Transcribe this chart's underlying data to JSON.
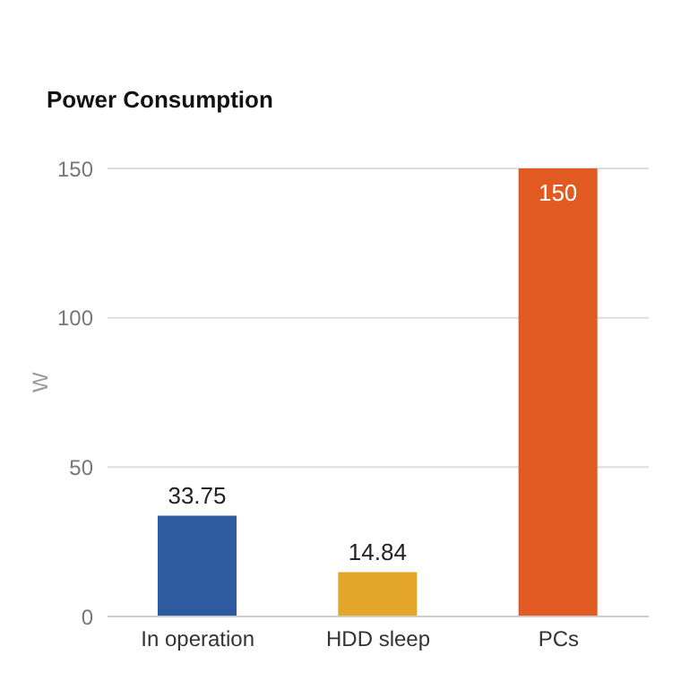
{
  "chart_data": {
    "type": "bar",
    "title": "Power Consumption",
    "ylabel": "W",
    "categories": [
      "In operation",
      "HDD sleep",
      "PCs"
    ],
    "values": [
      33.75,
      14.84,
      150
    ],
    "colors": [
      "#2e5aa0",
      "#e3a62b",
      "#e05a22"
    ],
    "ylim": [
      0,
      150
    ],
    "yticks": [
      0,
      50,
      100,
      150
    ],
    "grid": "y",
    "data_labels": true
  }
}
